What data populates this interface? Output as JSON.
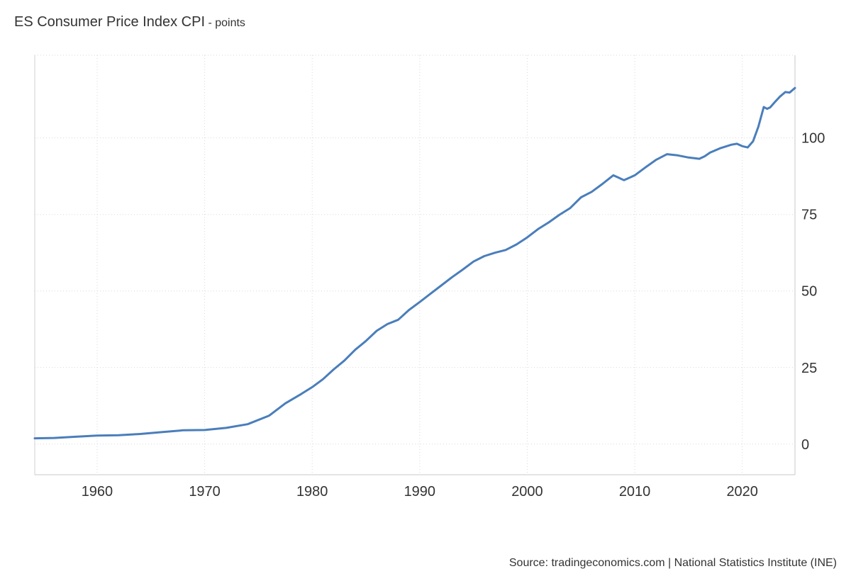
{
  "header": {
    "title": "ES Consumer Price Index CPI",
    "unit": " - points"
  },
  "footer": {
    "source": "Source: tradingeconomics.com | National Statistics Institute (INE)"
  },
  "chart_data": {
    "type": "line",
    "title": "ES Consumer Price Index CPI",
    "subtitle": "points",
    "xlabel": "",
    "ylabel": "",
    "xlim": [
      1954.2,
      2024.9
    ],
    "ylim": [
      -10,
      127
    ],
    "x_ticks": [
      1960,
      1970,
      1980,
      1990,
      2000,
      2010,
      2020
    ],
    "y_ticks": [
      0,
      25,
      50,
      75,
      100
    ],
    "grid": true,
    "y_axis_side": "right",
    "line_color": "#4a7ebb",
    "series": [
      {
        "x": [
          1954.2,
          1956,
          1958,
          1960,
          1962,
          1964,
          1966,
          1968,
          1970,
          1972,
          1974,
          1976,
          1977.5,
          1979,
          1980,
          1981,
          1982,
          1983,
          1984,
          1985,
          1986,
          1987,
          1988,
          1989,
          1990,
          1991,
          1992,
          1993,
          1994,
          1995,
          1996,
          1997,
          1998,
          1999,
          2000,
          2001,
          2002,
          2003,
          2004,
          2005,
          2006,
          2007,
          2008,
          2008.5,
          2009,
          2010,
          2011,
          2012,
          2013,
          2014,
          2015,
          2016,
          2016.5,
          2017,
          2018,
          2019,
          2019.5,
          2020,
          2020.5,
          2021,
          2021.5,
          2022,
          2022.3,
          2022.6,
          2023,
          2023.5,
          2024,
          2024.4,
          2024.9
        ],
        "y": [
          1.9,
          2.0,
          2.4,
          2.8,
          2.9,
          3.3,
          3.9,
          4.5,
          4.6,
          5.3,
          6.5,
          9.3,
          13.3,
          16.4,
          18.6,
          21.2,
          24.4,
          27.3,
          30.8,
          33.7,
          37.0,
          39.2,
          40.6,
          43.8,
          46.4,
          49.1,
          51.8,
          54.5,
          57.0,
          59.6,
          61.4,
          62.5,
          63.4,
          65.2,
          67.5,
          70.2,
          72.4,
          74.9,
          77.1,
          80.6,
          82.4,
          85.0,
          87.8,
          87.0,
          86.2,
          87.8,
          90.4,
          92.9,
          94.7,
          94.3,
          93.6,
          93.2,
          94.0,
          95.2,
          96.7,
          97.8,
          98.1,
          97.3,
          96.9,
          98.9,
          103.7,
          110.1,
          109.5,
          110.0,
          111.6,
          113.5,
          115.0,
          114.8,
          116.3
        ]
      }
    ]
  }
}
